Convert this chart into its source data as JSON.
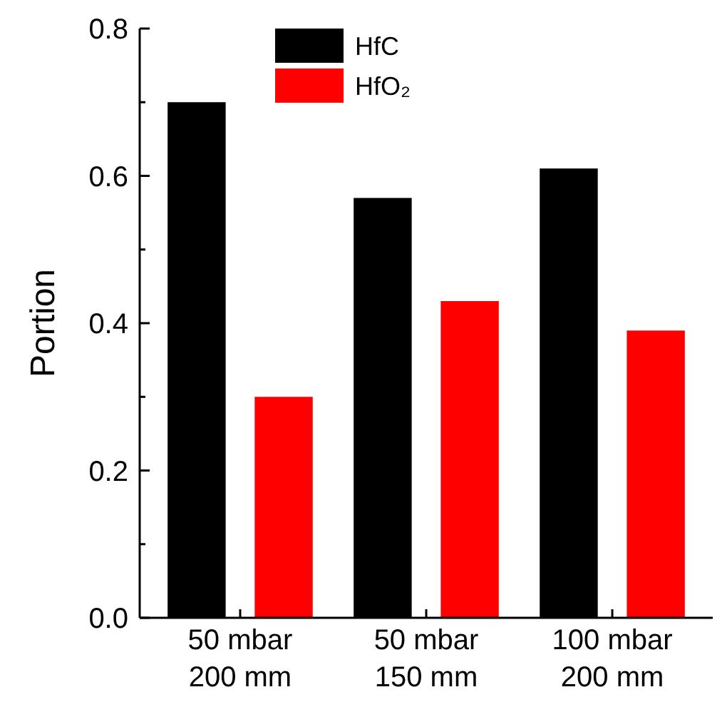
{
  "chart_data": {
    "type": "bar",
    "ylabel": "Portion",
    "categories": [
      "50 mbar\n200 mm",
      "50 mbar\n150 mm",
      "100 mbar\n200 mm"
    ],
    "series": [
      {
        "name": "HfC",
        "color": "#000000",
        "values": [
          0.7,
          0.57,
          0.61
        ]
      },
      {
        "name": "HfO₂",
        "color": "#ff0000",
        "values": [
          0.3,
          0.43,
          0.39
        ]
      }
    ],
    "ylim": [
      0,
      0.8
    ],
    "yticks": [
      {
        "value": 0,
        "label": "0.0"
      },
      {
        "value": 0.1,
        "label": null
      },
      {
        "value": 0.2,
        "label": "0.2"
      },
      {
        "value": 0.3,
        "label": null
      },
      {
        "value": 0.4,
        "label": "0.4"
      },
      {
        "value": 0.5,
        "label": null
      },
      {
        "value": 0.6,
        "label": "0.6"
      },
      {
        "value": 0.7,
        "label": null
      },
      {
        "value": 0.8,
        "label": "0.8"
      }
    ],
    "legend": "top"
  }
}
